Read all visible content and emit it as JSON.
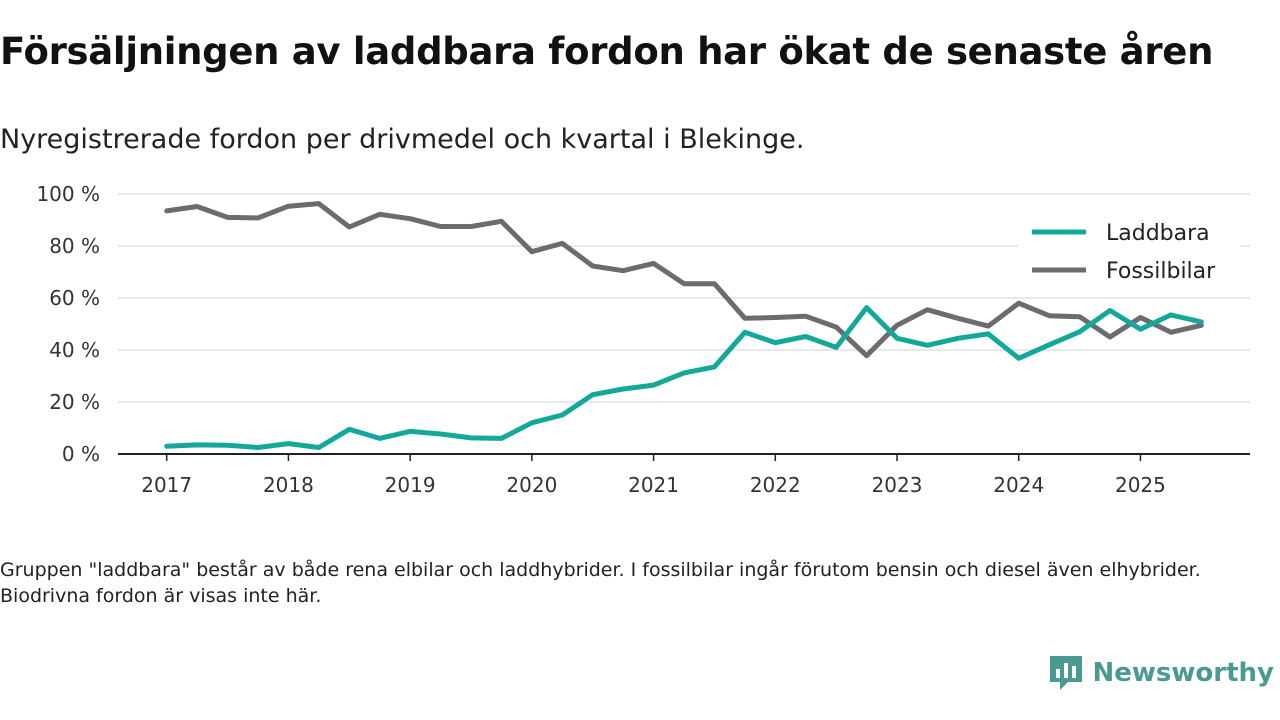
{
  "title": "Försäljningen av laddbara fordon har ökat de senaste åren",
  "subtitle": "Nyregistrerade fordon per drivmedel och kvartal i Blekinge.",
  "footnote": "Gruppen \"laddbara\" består av både rena elbilar och laddhybrider. I fossilbilar ingår förutom bensin och diesel även elhybrider. Biodrivna fordon är visas inte här.",
  "brand": {
    "name": "Newsworthy",
    "icon": "newsworthy-logo-icon",
    "color": "#4a9a93"
  },
  "chart_data": {
    "type": "line",
    "title": "Försäljningen av laddbara fordon har ökat de senaste åren",
    "subtitle": "Nyregistrerade fordon per drivmedel och kvartal i Blekinge.",
    "xlabel": "",
    "ylabel": "",
    "x_ticks": [
      "2017",
      "2018",
      "2019",
      "2020",
      "2021",
      "2022",
      "2023",
      "2024",
      "2025"
    ],
    "x_tick_values": [
      2017,
      2018,
      2019,
      2020,
      2021,
      2022,
      2023,
      2024,
      2025
    ],
    "y_ticks": [
      "0 %",
      "20 %",
      "40 %",
      "60 %",
      "80 %",
      "100 %"
    ],
    "y_tick_values": [
      0,
      20,
      40,
      60,
      80,
      100
    ],
    "xlim": [
      2016.6,
      2025.9
    ],
    "ylim": [
      0,
      100
    ],
    "grid": true,
    "legend_position": "top-right",
    "x": [
      2017,
      2017.25,
      2017.5,
      2017.75,
      2018,
      2018.25,
      2018.5,
      2018.75,
      2019,
      2019.25,
      2019.5,
      2019.75,
      2020,
      2020.25,
      2020.5,
      2020.75,
      2021,
      2021.25,
      2021.5,
      2021.75,
      2022,
      2022.25,
      2022.5,
      2022.75,
      2023,
      2023.25,
      2023.5,
      2023.75,
      2024,
      2024.25,
      2024.5,
      2024.75,
      2025,
      2025.25,
      2025.5
    ],
    "series": [
      {
        "name": "Laddbara",
        "color": "#14a89a",
        "values": [
          3,
          3.5,
          3.4,
          2.5,
          4,
          2.5,
          9.5,
          6,
          8.7,
          7.7,
          6.2,
          6,
          12,
          15,
          22.8,
          25,
          26.5,
          31.2,
          33.5,
          46.8,
          42.8,
          45.2,
          41,
          56.3,
          44.5,
          41.8,
          44.5,
          46.2,
          36.8,
          42,
          47,
          55.2,
          48,
          53.5,
          50.8
        ]
      },
      {
        "name": "Fossilbilar",
        "color": "#6b6b70",
        "values": [
          93.5,
          95.2,
          91,
          90.8,
          95.3,
          96.3,
          87.3,
          92.2,
          90.5,
          87.5,
          87.5,
          89.5,
          77.8,
          81,
          72.3,
          70.5,
          73.3,
          65.5,
          65.5,
          52.2,
          52.5,
          53,
          48.8,
          37.8,
          49.5,
          55.5,
          52.2,
          49.2,
          58,
          53.2,
          52.8,
          45,
          52.5,
          46.8,
          49.5
        ]
      }
    ]
  }
}
